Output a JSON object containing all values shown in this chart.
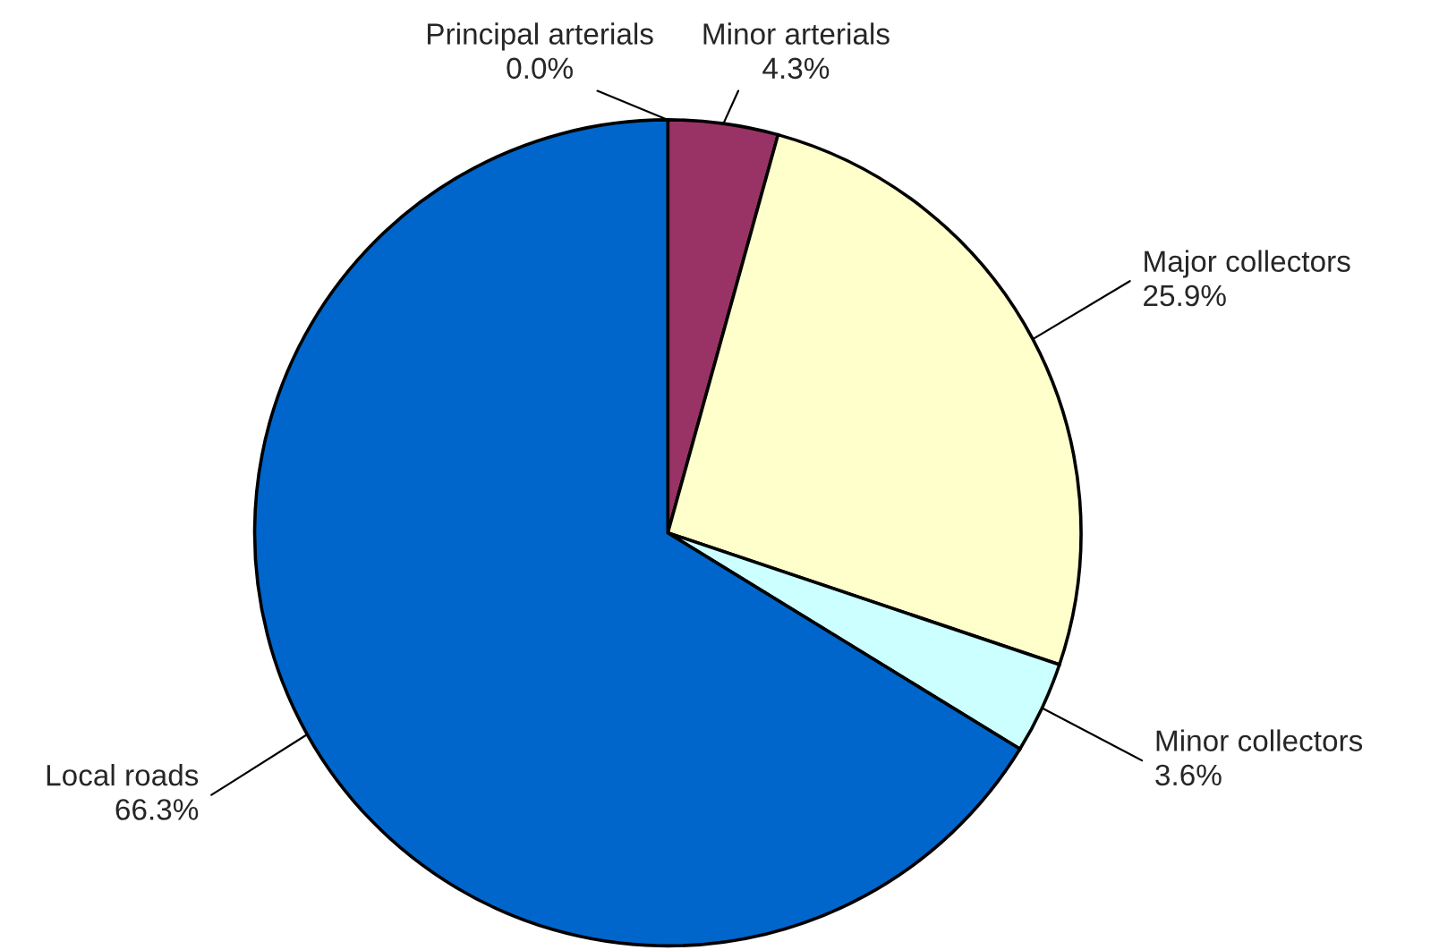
{
  "chart_data": {
    "type": "pie",
    "categories": [
      "Principal arterials",
      "Minor arterials",
      "Major collectors",
      "Minor collectors",
      "Local roads"
    ],
    "values": [
      0.0,
      4.3,
      25.9,
      3.6,
      66.3
    ],
    "value_labels": [
      "0.0%",
      "4.3%",
      "25.9%",
      "3.6%",
      "66.3%"
    ],
    "colors": [
      "#9999ff",
      "#993366",
      "#ffffcc",
      "#ccffff",
      "#0066cc"
    ],
    "legend": false
  }
}
